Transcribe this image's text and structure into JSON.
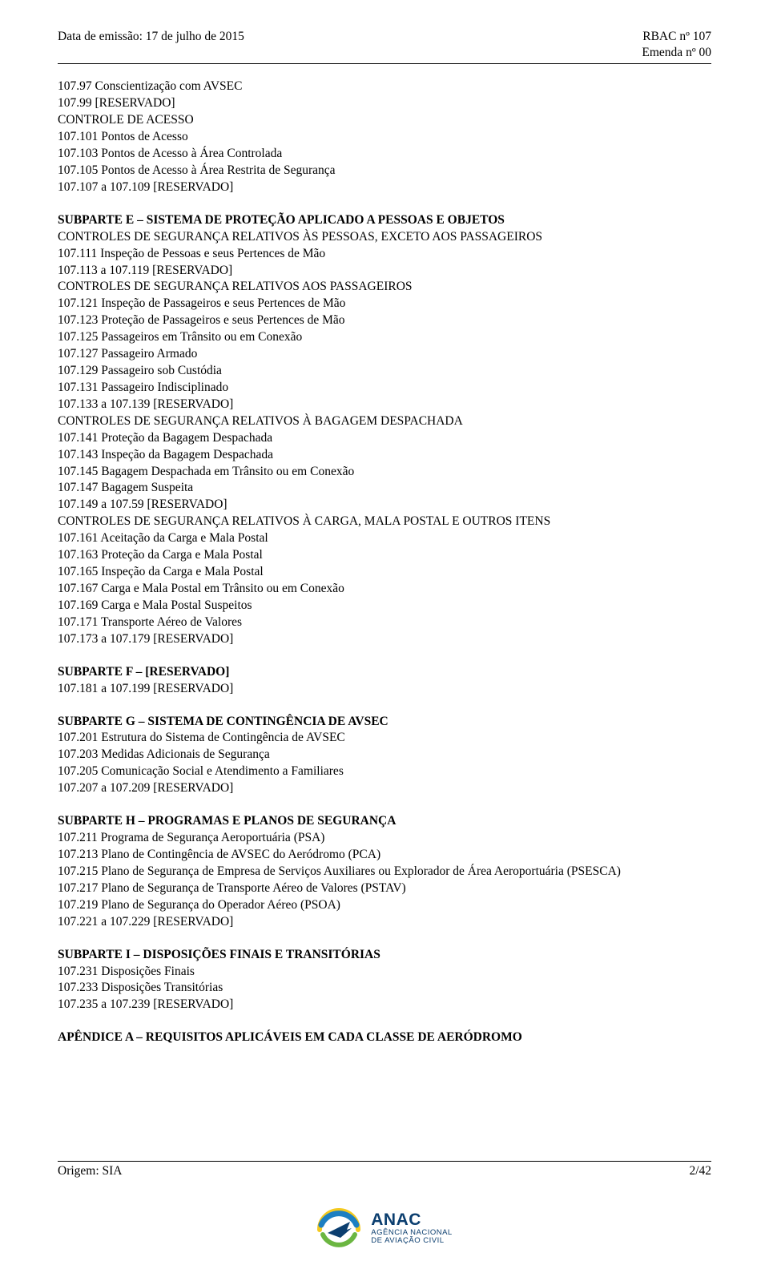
{
  "header": {
    "left": "Data de emissão: 17 de julho de 2015",
    "right1": "RBAC nº 107",
    "right2": "Emenda nº 00"
  },
  "lines": [
    {
      "t": "107.97  Conscientização com AVSEC"
    },
    {
      "t": "107.99  [RESERVADO]"
    },
    {
      "t": "CONTROLE DE ACESSO"
    },
    {
      "t": "107.101 Pontos de Acesso"
    },
    {
      "t": "107.103 Pontos de Acesso à Área Controlada"
    },
    {
      "t": "107.105 Pontos de Acesso à Área Restrita de Segurança"
    },
    {
      "t": "107.107 a 107.109 [RESERVADO]"
    },
    {
      "blank": true
    },
    {
      "bold": true,
      "t": "SUBPARTE E – SISTEMA DE PROTEÇÃO APLICADO A PESSOAS E OBJETOS"
    },
    {
      "t": "CONTROLES DE SEGURANÇA RELATIVOS ÀS PESSOAS, EXCETO AOS PASSAGEIROS"
    },
    {
      "t": "107.111 Inspeção de Pessoas e seus Pertences de Mão"
    },
    {
      "t": "107.113 a 107.119 [RESERVADO]"
    },
    {
      "t": "CONTROLES DE SEGURANÇA RELATIVOS AOS PASSAGEIROS"
    },
    {
      "t": "107.121 Inspeção de Passageiros e seus Pertences de Mão"
    },
    {
      "t": "107.123 Proteção de Passageiros e seus Pertences de Mão"
    },
    {
      "t": "107.125 Passageiros em Trânsito ou em Conexão"
    },
    {
      "t": "107.127 Passageiro Armado"
    },
    {
      "t": "107.129 Passageiro sob Custódia"
    },
    {
      "t": "107.131 Passageiro Indisciplinado"
    },
    {
      "t": "107.133 a 107.139 [RESERVADO]"
    },
    {
      "t": "CONTROLES DE SEGURANÇA RELATIVOS À BAGAGEM DESPACHADA"
    },
    {
      "t": "107.141 Proteção da Bagagem Despachada"
    },
    {
      "t": "107.143 Inspeção da Bagagem Despachada"
    },
    {
      "t": "107.145 Bagagem Despachada em Trânsito ou em Conexão"
    },
    {
      "t": "107.147 Bagagem Suspeita"
    },
    {
      "t": "107.149 a 107.59 [RESERVADO]"
    },
    {
      "t": "CONTROLES DE SEGURANÇA RELATIVOS À CARGA, MALA POSTAL E OUTROS ITENS"
    },
    {
      "t": "107.161 Aceitação da Carga e Mala Postal"
    },
    {
      "t": "107.163 Proteção da Carga e Mala Postal"
    },
    {
      "t": "107.165 Inspeção da Carga e Mala Postal"
    },
    {
      "t": "107.167 Carga e Mala Postal em Trânsito ou em Conexão"
    },
    {
      "t": "107.169 Carga e Mala Postal Suspeitos"
    },
    {
      "t": "107.171 Transporte Aéreo de Valores"
    },
    {
      "t": "107.173 a 107.179 [RESERVADO]"
    },
    {
      "blank": true
    },
    {
      "bold": true,
      "t": "SUBPARTE F – [RESERVADO]"
    },
    {
      "t": "107.181 a 107.199 [RESERVADO]"
    },
    {
      "blank": true
    },
    {
      "bold": true,
      "t": "SUBPARTE G – SISTEMA DE CONTINGÊNCIA DE AVSEC"
    },
    {
      "t": "107.201 Estrutura do Sistema de Contingência de AVSEC"
    },
    {
      "t": "107.203 Medidas Adicionais de Segurança"
    },
    {
      "t": "107.205 Comunicação Social e Atendimento a Familiares"
    },
    {
      "t": "107.207 a 107.209 [RESERVADO]"
    },
    {
      "blank": true
    },
    {
      "bold": true,
      "t": "SUBPARTE H – PROGRAMAS E PLANOS DE SEGURANÇA"
    },
    {
      "t": "107.211 Programa de Segurança Aeroportuária (PSA)"
    },
    {
      "t": "107.213 Plano de Contingência de AVSEC do Aeródromo (PCA)"
    },
    {
      "t": "107.215 Plano de Segurança de Empresa de Serviços Auxiliares ou Explorador de Área Aeroportuária (PSESCA)"
    },
    {
      "t": "107.217 Plano de Segurança de Transporte Aéreo de Valores (PSTAV)"
    },
    {
      "t": "107.219 Plano de Segurança do Operador Aéreo (PSOA)"
    },
    {
      "t": "107.221 a 107.229 [RESERVADO]"
    },
    {
      "blank": true
    },
    {
      "bold": true,
      "t": "SUBPARTE I – DISPOSIÇÕES FINAIS E TRANSITÓRIAS"
    },
    {
      "t": "107.231 Disposições Finais"
    },
    {
      "t": "107.233 Disposições Transitórias"
    },
    {
      "t": "107.235 a 107.239 [RESERVADO]"
    },
    {
      "blank": true
    },
    {
      "bold": true,
      "t": "APÊNDICE A – REQUISITOS APLICÁVEIS EM CADA CLASSE DE AERÓDROMO"
    }
  ],
  "footer": {
    "left": "Origem: SIA",
    "right": "2/42"
  },
  "logo": {
    "brand": "ANAC",
    "sub": "AGÊNCIA NACIONAL\nDE AVIAÇÃO CIVIL",
    "colors": {
      "text": "#0b3e6f",
      "blue": "#1c7fc2",
      "green": "#6bb641",
      "yellow": "#f4c91e"
    }
  }
}
